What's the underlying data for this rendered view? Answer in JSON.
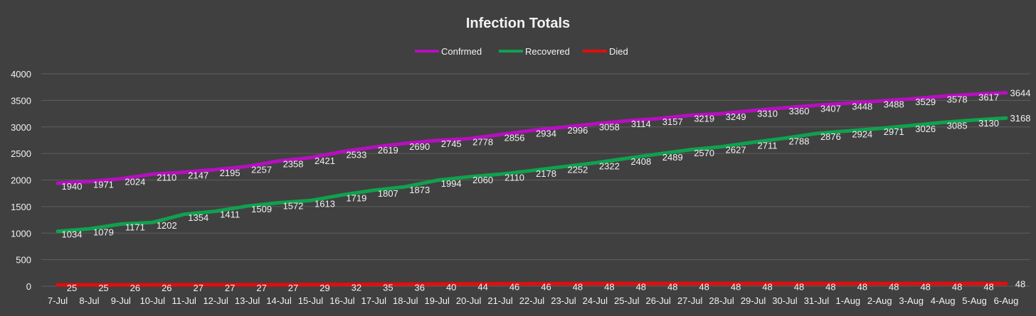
{
  "chart_data": {
    "type": "line",
    "title": "Infection Totals",
    "xlabel": "",
    "ylabel": "",
    "ylim": [
      0,
      4000
    ],
    "yticks": [
      0,
      500,
      1000,
      1500,
      2000,
      2500,
      3000,
      3500,
      4000
    ],
    "grid": true,
    "legend": "top-center",
    "categories": [
      "7-Jul",
      "8-Jul",
      "9-Jul",
      "10-Jul",
      "11-Jul",
      "12-Jul",
      "13-Jul",
      "14-Jul",
      "15-Jul",
      "16-Jul",
      "17-Jul",
      "18-Jul",
      "19-Jul",
      "20-Jul",
      "21-Jul",
      "22-Jul",
      "23-Jul",
      "24-Jul",
      "25-Jul",
      "26-Jul",
      "27-Jul",
      "28-Jul",
      "29-Jul",
      "30-Jul",
      "31-Jul",
      "1-Aug",
      "2-Aug",
      "3-Aug",
      "4-Aug",
      "5-Aug",
      "6-Aug"
    ],
    "series": [
      {
        "name": "Confrmed",
        "color": "#B60FBF",
        "values": [
          1940,
          1971,
          2024,
          2110,
          2147,
          2195,
          2257,
          2358,
          2421,
          2533,
          2619,
          2690,
          2745,
          2778,
          2856,
          2934,
          2996,
          3058,
          3114,
          3157,
          3219,
          3249,
          3310,
          3360,
          3407,
          3448,
          3488,
          3529,
          3578,
          3617,
          3644
        ]
      },
      {
        "name": "Recovered",
        "color": "#10A14E",
        "values": [
          1034,
          1079,
          1171,
          1202,
          1354,
          1411,
          1509,
          1572,
          1613,
          1719,
          1807,
          1873,
          1994,
          2060,
          2110,
          2178,
          2252,
          2322,
          2408,
          2489,
          2570,
          2627,
          2711,
          2788,
          2876,
          2924,
          2971,
          3026,
          3085,
          3130,
          3168
        ]
      },
      {
        "name": "Died",
        "color": "#E30D0D",
        "values": [
          25,
          25,
          26,
          26,
          27,
          27,
          27,
          27,
          29,
          32,
          35,
          36,
          40,
          44,
          46,
          46,
          48,
          48,
          48,
          48,
          48,
          48,
          48,
          48,
          48,
          48,
          48,
          48,
          48,
          48,
          48
        ]
      }
    ]
  },
  "style": {
    "background": "#404040",
    "gridline": "#5e5e5e",
    "text": "#f2f2f2"
  }
}
